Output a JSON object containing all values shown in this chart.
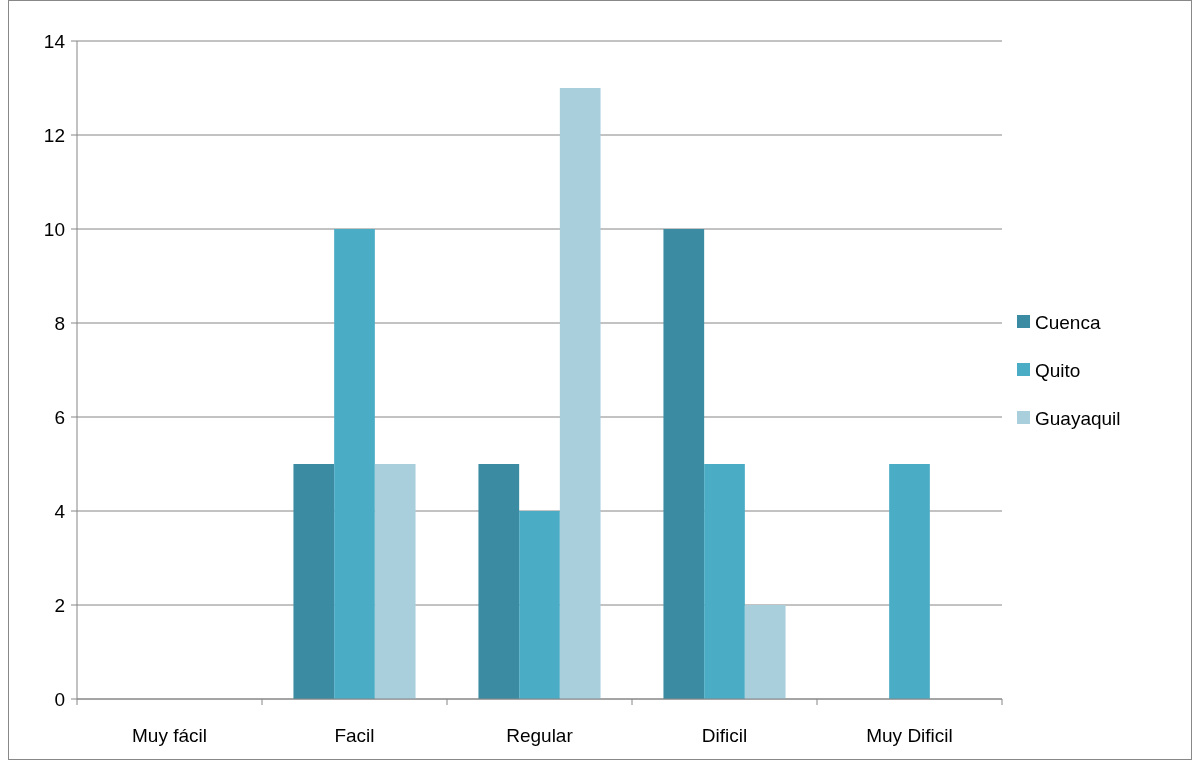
{
  "chart_data": {
    "type": "bar",
    "categories": [
      "Muy fácil",
      "Facil",
      "Regular",
      "Dificil",
      "Muy Dificil"
    ],
    "series": [
      {
        "name": "Cuenca",
        "color": "#3b8ba3",
        "values": [
          0,
          5,
          5,
          10,
          0
        ]
      },
      {
        "name": "Quito",
        "color": "#4bacc6",
        "values": [
          0,
          10,
          4,
          5,
          5
        ]
      },
      {
        "name": "Guayaquil",
        "color": "#a9cfdd",
        "values": [
          0,
          5,
          13,
          2,
          0
        ]
      }
    ],
    "ylim": [
      0,
      14
    ],
    "yticks": [
      0,
      2,
      4,
      6,
      8,
      10,
      12,
      14
    ],
    "grid": "y",
    "legend": "right"
  }
}
